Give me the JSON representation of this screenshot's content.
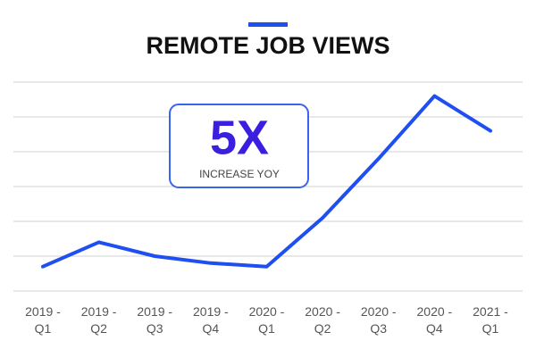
{
  "chart_data": {
    "type": "line",
    "title": "REMOTE JOB VIEWS",
    "annotations": [
      "5X",
      "INCREASE YOY"
    ],
    "categories": [
      "2019 -\nQ1",
      "2019 -\nQ2",
      "2019 -\nQ3",
      "2019 -\nQ4",
      "2020 -\nQ1",
      "2020 -\nQ2",
      "2020 -\nQ3",
      "2020 -\nQ4",
      "2021 -\nQ1"
    ],
    "values": [
      0.7,
      1.4,
      1.0,
      0.8,
      0.7,
      2.1,
      3.8,
      5.6,
      4.6
    ],
    "color": "#1f4ff0",
    "ylim": [
      0,
      6
    ],
    "yticks": [
      0,
      1,
      2,
      3,
      4,
      5,
      6
    ],
    "grid": true
  }
}
